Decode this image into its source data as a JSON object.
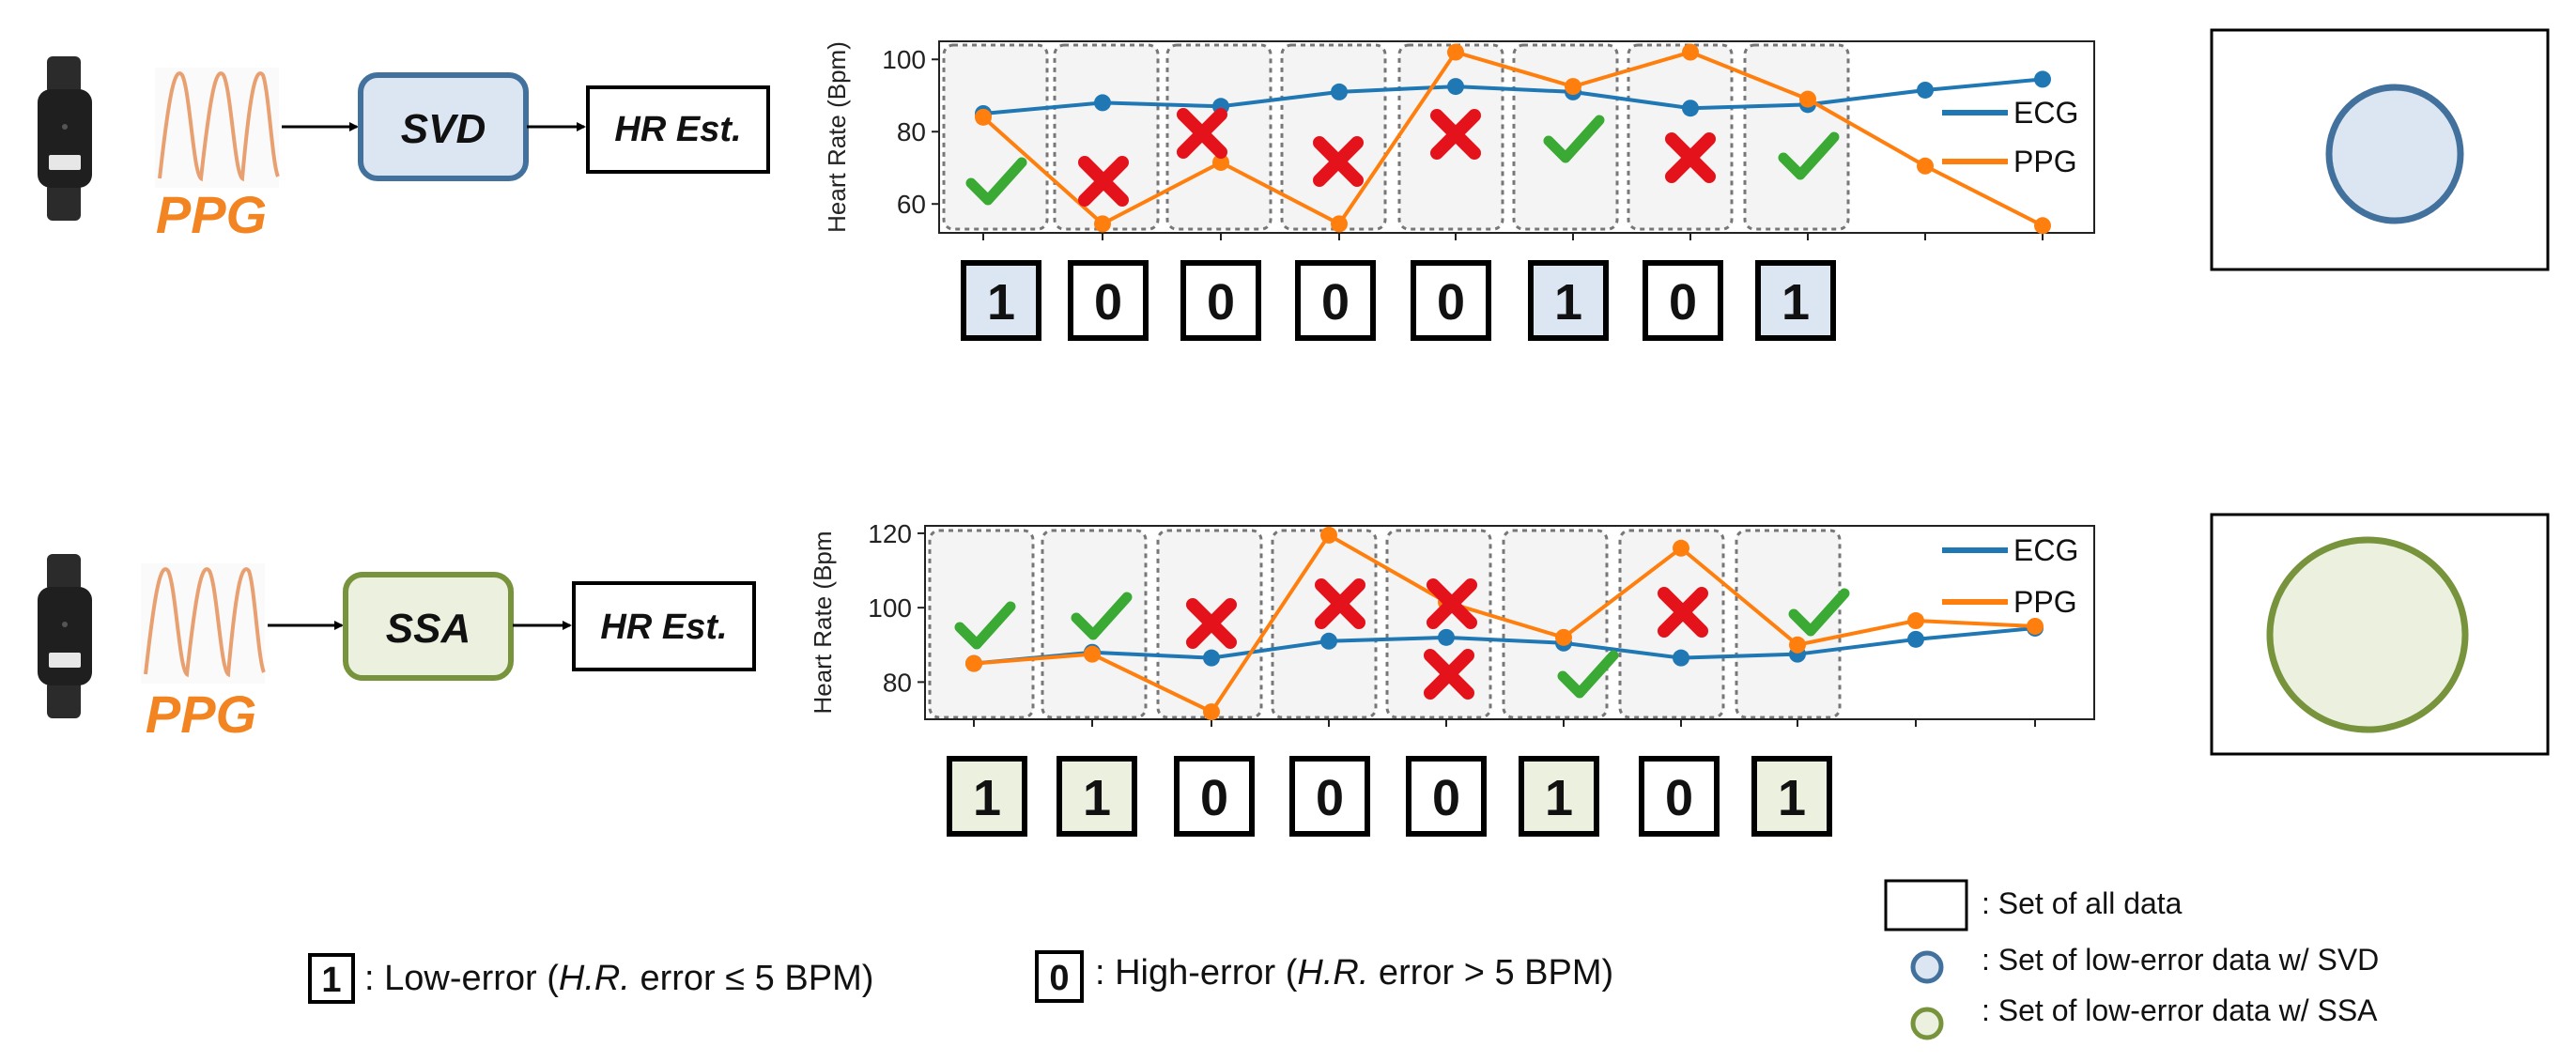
{
  "colors": {
    "ecg": "#1F77B4",
    "ppg": "#FF7F0E",
    "ppg_label": "#F28522",
    "svd_fill": "#DCE6F2",
    "svd_stroke": "#41719C",
    "ssa_fill": "#EBF1DE",
    "ssa_stroke": "#77933C",
    "check": "#3AAA35",
    "cross": "#E3121B"
  },
  "rows": [
    {
      "ppg_label": "PPG",
      "method": "SVD",
      "output": "HR Est.",
      "chart_data": {
        "type": "line",
        "ylabel": "Heart Rate (Bpm)",
        "yticks": [
          60,
          80,
          100
        ],
        "ylim": [
          52,
          105
        ],
        "x": [
          0,
          1,
          2,
          3,
          4,
          5,
          6,
          7,
          8,
          9
        ],
        "series": [
          {
            "name": "ECG",
            "values": [
              85,
              88,
              87,
              91,
              92.5,
              91,
              86.5,
              87.5,
              91.5,
              94.5
            ]
          },
          {
            "name": "PPG",
            "values": [
              84,
              54.5,
              71.5,
              54.5,
              102,
              92.5,
              102,
              89,
              70.5,
              54
            ]
          }
        ],
        "legend": [
          "ECG",
          "PPG"
        ],
        "legend_position": "right",
        "marks": [
          "check",
          "cross",
          "cross",
          "cross",
          "cross",
          "check",
          "cross",
          "check"
        ],
        "binary": [
          "1",
          "0",
          "0",
          "0",
          "0",
          "1",
          "0",
          "1"
        ]
      },
      "venn": "svd-circle"
    },
    {
      "ppg_label": "PPG",
      "method": "SSA",
      "output": "HR Est.",
      "chart_data": {
        "type": "line",
        "ylabel": "Heart Rate (Bpm",
        "yticks": [
          80,
          100,
          120
        ],
        "ylim": [
          70,
          122
        ],
        "x": [
          0,
          1,
          2,
          3,
          4,
          5,
          6,
          7,
          8,
          9
        ],
        "series": [
          {
            "name": "ECG",
            "values": [
              85,
              88,
              86.5,
              91,
              92,
              90.5,
              86.5,
              87.5,
              91.5,
              94.5
            ]
          },
          {
            "name": "PPG",
            "values": [
              85,
              87.5,
              72,
              119.5,
              101.5,
              92,
              116,
              90,
              96.5,
              95
            ]
          }
        ],
        "legend": [
          "ECG",
          "PPG"
        ],
        "legend_position": "right",
        "marks": [
          "check",
          "check",
          "cross",
          "cross",
          "cross",
          "check",
          "cross",
          "check"
        ],
        "extra_cross_slot": 4,
        "binary": [
          "1",
          "1",
          "0",
          "0",
          "0",
          "1",
          "0",
          "1"
        ]
      },
      "venn": "ssa-circle"
    }
  ],
  "legend_left": {
    "one_key": "1",
    "one_text_a": ": Low-error (",
    "one_text_italic": "H.R.",
    "one_text_b": " error ≤ 5 BPM)",
    "zero_key": "0",
    "zero_text_a": ": High-error (",
    "zero_text_italic": "H.R.",
    "zero_text_b": " error > 5 BPM)"
  },
  "legend_right": {
    "all": ": Set of all data",
    "svd": ": Set of low-error data w/ SVD",
    "ssa": ": Set of low-error data w/ SSA"
  }
}
